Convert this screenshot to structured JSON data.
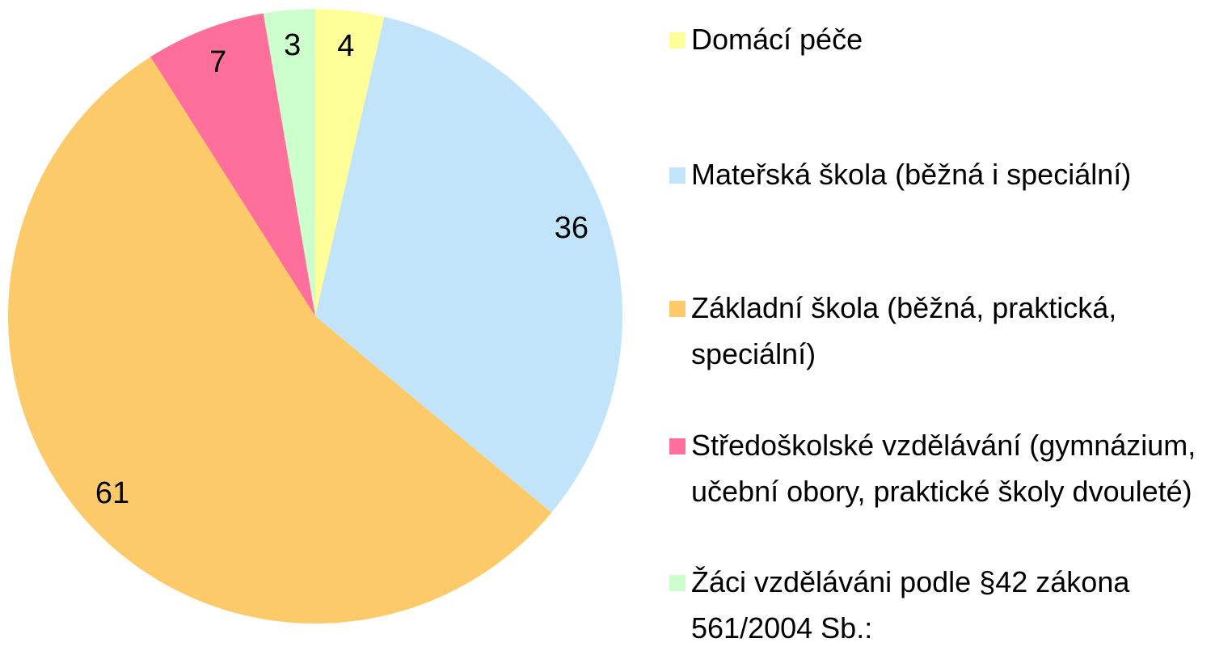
{
  "chart_data": {
    "type": "pie",
    "categories": [
      "Domácí péče",
      "Mateřská škola (běžná i speciální)",
      "Základní škola (běžná, praktická, speciální)",
      "Středoškolské vzdělávání (gymnázium, učební obory, praktické školy dvouleté)",
      "Žáci vzděláváni podle §42 zákona 561/2004 Sb.:"
    ],
    "values": [
      4,
      36,
      61,
      7,
      3
    ],
    "colors": [
      "#ffff99",
      "#c2e4fb",
      "#fdca6a",
      "#ff6f9c",
      "#ccffcc"
    ]
  }
}
